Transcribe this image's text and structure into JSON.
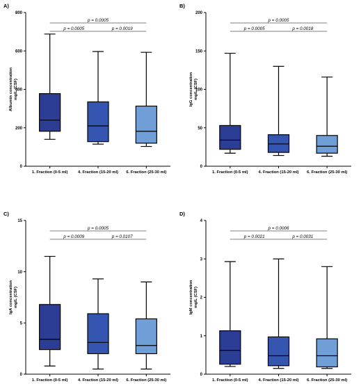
{
  "colors": {
    "fraction1": "#2b3d94",
    "fraction4": "#3556b0",
    "fraction6": "#6f9fd6",
    "stroke": "#000000",
    "bracket": "#555555"
  },
  "chart_data": [
    {
      "panel_label": "A)",
      "type": "box",
      "ylabel": "Albumin concentration\nmg/L (CSF)",
      "ylim": [
        0,
        800
      ],
      "yticks": [
        0,
        200,
        400,
        600,
        800
      ],
      "categories": [
        "1. Fraction (0-5 ml)",
        "4. Fraction (15-20 ml)",
        "6. Fraction (25-30 ml)"
      ],
      "boxes": [
        {
          "min": 140,
          "q1": 182,
          "median": 240,
          "q3": 378,
          "max": 688
        },
        {
          "min": 115,
          "q1": 128,
          "median": 210,
          "q3": 335,
          "max": 597
        },
        {
          "min": 103,
          "q1": 120,
          "median": 182,
          "q3": 313,
          "max": 593
        }
      ],
      "comparisons": [
        {
          "from": 0,
          "to": 1,
          "label": "p = 0.0005",
          "level": 1
        },
        {
          "from": 1,
          "to": 2,
          "label": "p = 0.0019",
          "level": 1
        },
        {
          "from": 0,
          "to": 2,
          "label": "p = 0.0005",
          "level": 2
        }
      ]
    },
    {
      "panel_label": "B)",
      "type": "box",
      "ylabel": "IgG concentration\nmg/L (CSF)",
      "ylim": [
        0,
        200
      ],
      "yticks": [
        0,
        50,
        100,
        150,
        200
      ],
      "categories": [
        "1. Fraction (0-5 ml)",
        "4. Fraction (15-20 ml)",
        "6. Fraction (25-30 ml)"
      ],
      "boxes": [
        {
          "min": 17,
          "q1": 22,
          "median": 34,
          "q3": 53,
          "max": 147
        },
        {
          "min": 14,
          "q1": 18,
          "median": 29,
          "q3": 41,
          "max": 130
        },
        {
          "min": 13,
          "q1": 17,
          "median": 26,
          "q3": 40,
          "max": 116
        }
      ],
      "comparisons": [
        {
          "from": 0,
          "to": 1,
          "label": "p = 0.0005",
          "level": 1
        },
        {
          "from": 1,
          "to": 2,
          "label": "p = 0.0018",
          "level": 1
        },
        {
          "from": 0,
          "to": 2,
          "label": "p = 0.0005",
          "level": 2
        }
      ]
    },
    {
      "panel_label": "C)",
      "type": "box",
      "ylabel": "IgA concentration\nmg/L (CSF)",
      "ylim": [
        0,
        15
      ],
      "yticks": [
        0,
        5,
        10,
        15
      ],
      "categories": [
        "1. Fraction (0-5 ml)",
        "4. Fraction (15-20 ml)",
        "6. Fraction (25-30 ml)"
      ],
      "boxes": [
        {
          "min": 0.8,
          "q1": 2.4,
          "median": 3.4,
          "q3": 6.8,
          "max": 11.5
        },
        {
          "min": 0.5,
          "q1": 2.0,
          "median": 3.1,
          "q3": 5.9,
          "max": 9.3
        },
        {
          "min": 0.5,
          "q1": 2.0,
          "median": 2.8,
          "q3": 5.4,
          "max": 9.0
        }
      ],
      "comparisons": [
        {
          "from": 0,
          "to": 1,
          "label": "p = 0.0009",
          "level": 1
        },
        {
          "from": 1,
          "to": 2,
          "label": "p = 0.0107",
          "level": 1
        },
        {
          "from": 0,
          "to": 2,
          "label": "p = 0.0005",
          "level": 2
        }
      ]
    },
    {
      "panel_label": "D)",
      "type": "box",
      "ylabel": "IgM concentration\nmg/L (CSF)",
      "ylim": [
        0,
        4
      ],
      "yticks": [
        0,
        1,
        2,
        3,
        4
      ],
      "categories": [
        "1. Fraction (0-5 ml)",
        "4. Fraction (15-20 ml)",
        "6. Fraction (25-30 ml)"
      ],
      "boxes": [
        {
          "min": 0.2,
          "q1": 0.26,
          "median": 0.62,
          "q3": 1.13,
          "max": 2.93
        },
        {
          "min": 0.15,
          "q1": 0.22,
          "median": 0.48,
          "q3": 0.97,
          "max": 3.0
        },
        {
          "min": 0.15,
          "q1": 0.19,
          "median": 0.48,
          "q3": 0.92,
          "max": 2.8
        }
      ],
      "comparisons": [
        {
          "from": 0,
          "to": 1,
          "label": "p = 0.0021",
          "level": 1
        },
        {
          "from": 1,
          "to": 2,
          "label": "p = 0.0031",
          "level": 1
        },
        {
          "from": 0,
          "to": 2,
          "label": "p = 0.0006",
          "level": 2
        }
      ]
    }
  ]
}
